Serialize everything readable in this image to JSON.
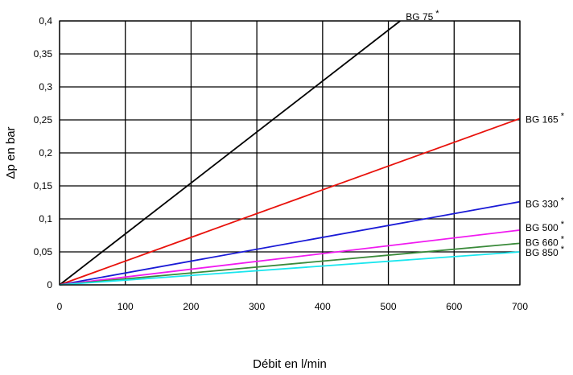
{
  "chart_data": {
    "type": "line",
    "title": "",
    "xlabel": "Débit en l/min",
    "ylabel": "Δp en bar",
    "xlim": [
      0,
      700
    ],
    "ylim": [
      0,
      0.4
    ],
    "x_ticks": [
      "0",
      "100",
      "200",
      "300",
      "400",
      "500",
      "600",
      "700"
    ],
    "y_ticks": [
      "0",
      "0,05",
      "0,1",
      "0,15",
      "0,2",
      "0,25",
      "0,3",
      "0,35",
      "0,4"
    ],
    "grid": true,
    "legend": "none",
    "series": [
      {
        "name": "BG 75",
        "marker": "*",
        "color": "#000000",
        "x": [
          0,
          518
        ],
        "y": [
          0,
          0.4
        ]
      },
      {
        "name": "BG 165",
        "marker": "*",
        "color": "#e8120c",
        "x": [
          0,
          700
        ],
        "y": [
          0,
          0.252
        ]
      },
      {
        "name": "BG 330",
        "marker": "*",
        "color": "#1a1ad6",
        "x": [
          0,
          700
        ],
        "y": [
          0,
          0.126
        ]
      },
      {
        "name": "BG 500",
        "marker": "*",
        "color": "#f01af0",
        "x": [
          0,
          700
        ],
        "y": [
          0,
          0.083
        ]
      },
      {
        "name": "BG 660",
        "marker": "*",
        "color": "#3a8a3a",
        "x": [
          0,
          700
        ],
        "y": [
          0,
          0.063
        ]
      },
      {
        "name": "BG 850",
        "marker": "*",
        "color": "#1ae6ee",
        "x": [
          0,
          700
        ],
        "y": [
          0,
          0.05
        ]
      }
    ]
  }
}
